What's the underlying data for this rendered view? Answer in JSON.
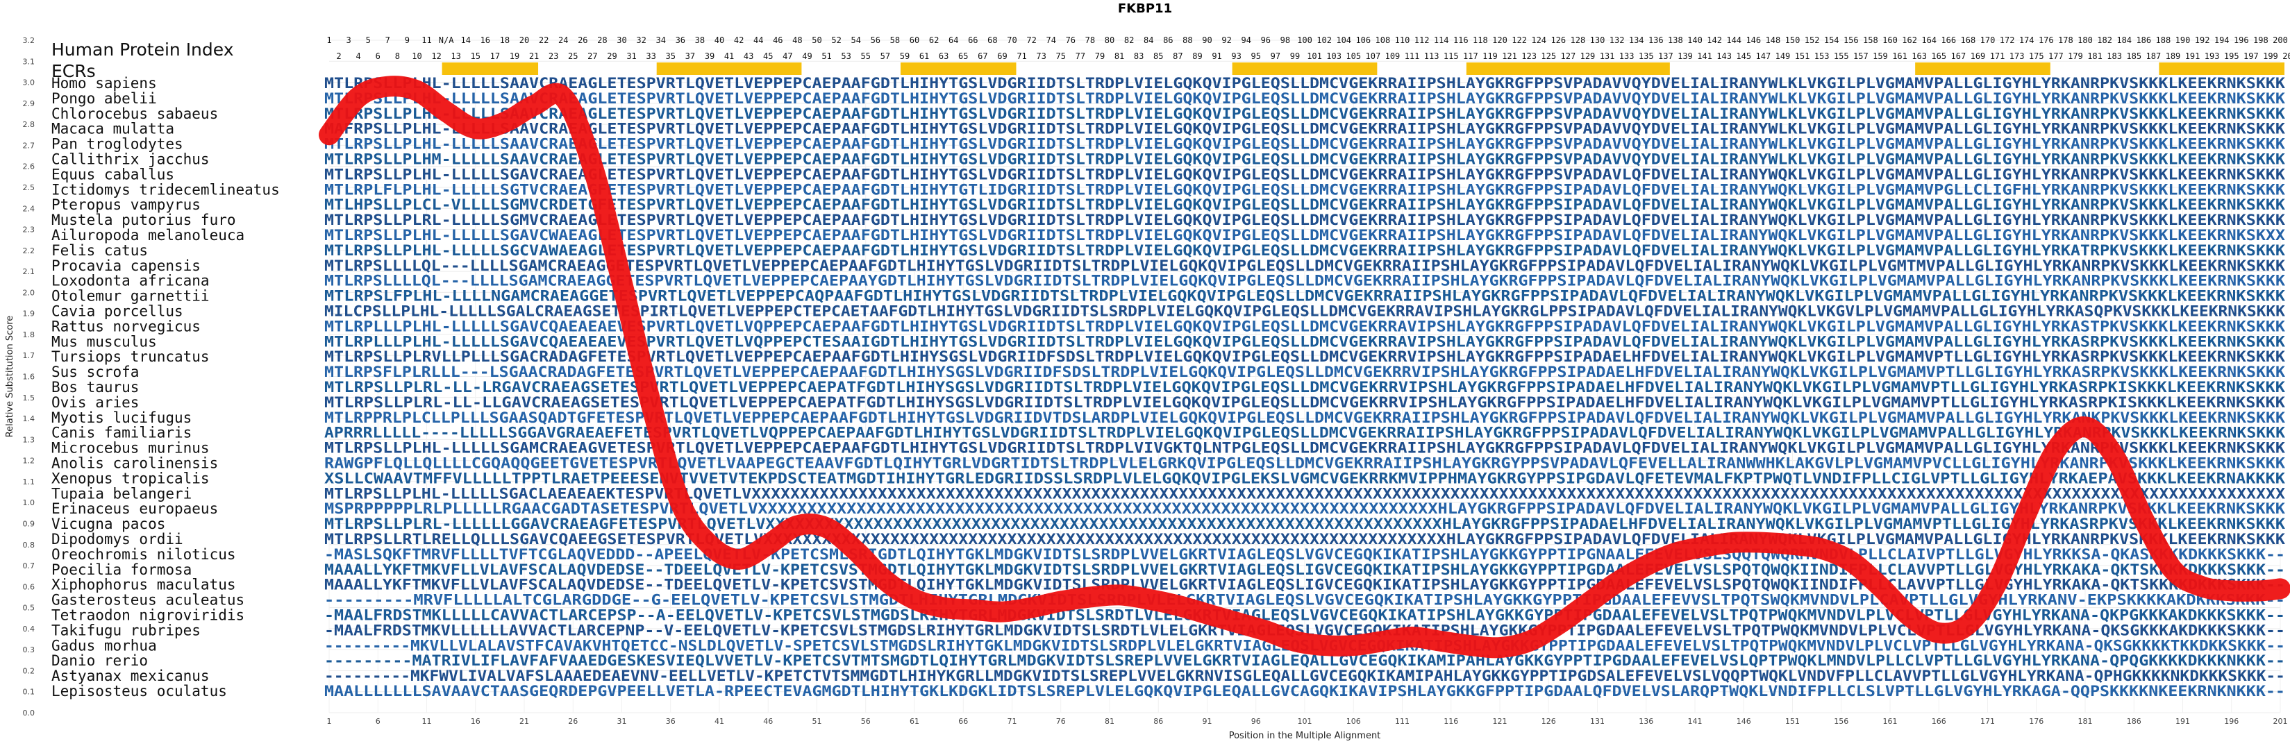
{
  "chart_data": {
    "type": "line",
    "title": "FKBP11",
    "xlabel": "Position in the Multiple Alignment",
    "ylabel": "Relative Substitution Score",
    "ylim": [
      0.0,
      3.2
    ],
    "xlim": [
      1,
      201
    ],
    "y_ticks": [
      "0.0",
      "0.1",
      "0.2",
      "0.3",
      "0.4",
      "0.5",
      "0.6",
      "0.7",
      "0.8",
      "0.9",
      "1.0",
      "1.1",
      "1.2",
      "1.3",
      "1.4",
      "1.5",
      "1.6",
      "1.7",
      "1.8",
      "1.9",
      "2.0",
      "2.1",
      "2.2",
      "2.3",
      "2.4",
      "2.5",
      "2.6",
      "2.7",
      "2.8",
      "2.9",
      "3.0",
      "3.1",
      "3.2"
    ],
    "x_ticks": [
      "1",
      "6",
      "11",
      "16",
      "21",
      "26",
      "31",
      "36",
      "41",
      "46",
      "51",
      "56",
      "61",
      "66",
      "71",
      "76",
      "81",
      "86",
      "91",
      "96",
      "101",
      "106",
      "111",
      "116",
      "121",
      "126",
      "131",
      "136",
      "141",
      "146",
      "151",
      "156",
      "161",
      "166",
      "171",
      "176",
      "181",
      "186",
      "191",
      "196",
      "201"
    ],
    "header_label": "Human Protein Index",
    "ecr_label": "ECRs",
    "hpi_row1": [
      "1",
      "3",
      "5",
      "7",
      "9",
      "11",
      "N/A",
      "14",
      "16",
      "18",
      "20",
      "22",
      "24",
      "26",
      "28",
      "30",
      "32",
      "34",
      "36",
      "38",
      "40",
      "42",
      "44",
      "46",
      "48",
      "50",
      "52",
      "54",
      "56",
      "58",
      "60",
      "62",
      "64",
      "66",
      "68",
      "70",
      "72",
      "74",
      "76",
      "78",
      "80",
      "82",
      "84",
      "86",
      "88",
      "90",
      "92",
      "94",
      "96",
      "98",
      "100",
      "102",
      "104",
      "106",
      "108",
      "110",
      "112",
      "114",
      "116",
      "118",
      "120",
      "122",
      "124",
      "126",
      "128",
      "130",
      "132",
      "134",
      "136",
      "138",
      "140",
      "142",
      "144",
      "146",
      "148",
      "150",
      "152",
      "154",
      "156",
      "158",
      "160",
      "162",
      "164",
      "166",
      "168",
      "170",
      "172",
      "174",
      "176",
      "178",
      "180",
      "182",
      "184",
      "186",
      "188",
      "190",
      "192",
      "194",
      "196",
      "198",
      "200"
    ],
    "hpi_row2": [
      "2",
      "4",
      "6",
      "8",
      "10",
      "12",
      "13",
      "15",
      "17",
      "19",
      "21",
      "23",
      "25",
      "27",
      "29",
      "31",
      "33",
      "35",
      "37",
      "39",
      "41",
      "43",
      "45",
      "47",
      "49",
      "51",
      "53",
      "55",
      "57",
      "59",
      "61",
      "63",
      "65",
      "67",
      "69",
      "71",
      "73",
      "75",
      "77",
      "79",
      "81",
      "83",
      "85",
      "87",
      "89",
      "91",
      "93",
      "95",
      "97",
      "99",
      "101",
      "103",
      "105",
      "107",
      "109",
      "111",
      "113",
      "115",
      "117",
      "119",
      "121",
      "123",
      "125",
      "127",
      "129",
      "131",
      "133",
      "135",
      "137",
      "139",
      "141",
      "143",
      "145",
      "147",
      "149",
      "151",
      "153",
      "155",
      "157",
      "159",
      "161",
      "163",
      "165",
      "167",
      "169",
      "171",
      "173",
      "175",
      "177",
      "179",
      "181",
      "183",
      "185",
      "187",
      "189",
      "191",
      "193",
      "195",
      "197",
      "199",
      "201"
    ],
    "ecr_regions": [
      [
        13,
        22
      ],
      [
        35,
        49
      ],
      [
        60,
        71
      ],
      [
        94,
        108
      ],
      [
        118,
        138
      ],
      [
        164,
        177
      ],
      [
        189,
        201
      ]
    ],
    "series": [
      {
        "color": "#ee1111",
        "x": [
          1,
          4,
          7,
          10,
          13,
          16,
          19,
          22,
          25,
          28,
          31,
          34,
          37,
          40,
          43,
          46,
          49,
          52,
          55,
          58,
          61,
          64,
          67,
          70,
          73,
          76,
          79,
          82,
          85,
          88,
          91,
          94,
          97,
          100,
          103,
          106,
          109,
          112,
          115,
          118,
          121,
          124,
          127,
          130,
          133,
          136,
          139,
          142,
          145,
          148,
          151,
          154,
          157,
          160,
          163,
          166,
          169,
          172,
          175,
          178,
          181,
          184,
          187,
          190,
          193,
          196,
          199,
          201
        ],
        "values": [
          2.75,
          2.93,
          2.98,
          2.96,
          2.86,
          2.78,
          2.81,
          2.89,
          2.93,
          2.6,
          2.05,
          1.47,
          1.0,
          0.8,
          0.73,
          0.8,
          0.89,
          0.88,
          0.77,
          0.63,
          0.54,
          0.5,
          0.49,
          0.48,
          0.5,
          0.53,
          0.55,
          0.56,
          0.54,
          0.51,
          0.47,
          0.43,
          0.39,
          0.34,
          0.32,
          0.32,
          0.34,
          0.36,
          0.34,
          0.32,
          0.31,
          0.34,
          0.42,
          0.52,
          0.62,
          0.7,
          0.76,
          0.79,
          0.81,
          0.81,
          0.8,
          0.78,
          0.72,
          0.6,
          0.46,
          0.38,
          0.42,
          0.62,
          0.95,
          1.25,
          1.36,
          1.22,
          0.92,
          0.68,
          0.6,
          0.58,
          0.58,
          0.59
        ]
      }
    ],
    "species": [
      {
        "name": "Homo sapiens",
        "seq": "MTLRPSLLPLHL-LLLLLSAAVCRAEAGLETESPVRTLQVETLVEPPEPCAEPAAFGDTLHIHYTGSLVDGRIIDTSLTRDPLVIELGQKQVIPGLEQSLLDMCVGEKRRAIIPSHLAYGKRGFPPSVPADAVVQYDVELIALIRANYWLKLVKGILPLVGMAMVPALLGLIGYHLYRKANRPKVSKKKLKEEKRNKSKKK"
      },
      {
        "name": "Pongo abelii",
        "seq": "MTLRPSLLPLHL-LLLLLSAAVCRAEAGLETESPVRTLQVETLVEPPEPCAEPAAFGDTLHIHYTGSLVDGRIIDTSLTRDPLVIELGQKQVIPGLEQSLLDMCVGEKRRAIIPSHLAYGKRGFPPSVPADAVVQYDVELIALIRANYWLKLVKGILPLVGMAMVPALLGLIGYHLYRKANRPKVSKKKLKEEKRNKSKKK"
      },
      {
        "name": "Chlorocebus sabaeus",
        "seq": "MTLRPSLLPLHL-LLLLLSAAVCRAEAGLETESPVRTLQVETLVEPPEPCAEPAAFGDTLHIHYTGSLVDGRIIDTSLTRDPLVIELGQKQVIPGLEQSLLDMCVGEKRRAIIPSHLAYGKRGFPPSVPADAVVQYDVELIALIRANYWLKLVKGILPLVGMAMVPALLGLIGYHLYRKANRPKVSKKKLKEEKRNKSKKK"
      },
      {
        "name": "Macaca mulatta",
        "seq": "MAFRPSLLPLHL-LLLLLSAAVCRAEAGLETESPVRTLQVETLVEPPEPCAEPAAFGDTLHIHYTGSLVDGRIIDTSLTRDPLVIELGQKQVIPGLEQSLLDMCVGEKRRAIIPSHLAYGKRGFPPSVPADAVVQYDVELIALIRANYWLKLVKGILPLVGMAMVPALLGLIGYHLYRKANRPKVSKKKLKEEKRNKSKKK"
      },
      {
        "name": "Pan troglodytes",
        "seq": "MTLRPSLLPLHL-LLLLLSAAVCRAEAGLETESPVRTLQVETLVEPPEPCAEPAAFGDTLHIHYTGSLVDGRIIDTSLTRDPLVIELGQKQVIPGLEQSLLDMCVGEKRRAIIPSHLAYGKRGFPPSVPADAVVQYDVELIALIRANYWLKLVKGILPLVGMAMVPALLGLIGYHLYRKANRPKVSKKKLKEEKRNKSKKK"
      },
      {
        "name": "Callithrix jacchus",
        "seq": "MTLRPSLLPLHM-LLLLLSAAVCRAEAGLETESPVRTLQVETLVEPPEPCAEPAAFGDTLHIHYTGSLVDGRIIDTSLTRDPLVIELGQKQVIPGLEQSLLDMCVGEKRRAIIPSHLAYGKRGFPPSVPADAVVQYDVELIALIRANYWLKLVKGILPLVGMAMVPALLGLIGYHLYRKANRPKVSKKKLKEEKRNKSKKK"
      },
      {
        "name": "Equus caballus",
        "seq": "MTLRPSLLPLHL-LLLLLSGAVCRAEAGLETESPVRTLQVETLVEPPEPCAEPAAFGDTLHIHYTGSLVDGRIIDTSLTRDPLVIELGQKQVIPGLEQSLLDMCVGEKRRAIIPSHLAYGKRGFPPSVPADAVLQFDVELIALIRANYWQKLVKGILPLVGMAMVPALLGLIGYHLYRKANRPKVSKKKLKEEKRNKSKKK"
      },
      {
        "name": "Ictidomys tridecemlineatus",
        "seq": "MTLRPLFLPLHL-LLLLLSGTVCRAEAGFETESPVRTLQVETLVEPPEPCAEPAAFGDTLHIHYTGTLIDGRIIDTSLTRDPLVIELGQKQVIPGLEQSLLDMCVGEKRRAIIPSHLAYGKRGFPPSIPADAVLQFDVELIALIRANYWQKLVKGILPLVGMAMVPGLLCLIGFHLYRKANRPKVSKKKLKEEKRNKSKKK"
      },
      {
        "name": "Pteropus vampyrus",
        "seq": "MTLHPSLLPLCL-VLLLLSGMVCRDETGFETESPVRTLQVETLVEPPEPCAEPAAFGDTLHIHYTGSLVDGRIIDTSLTRDPLVIELGQKQVIPGLEQSLLDMCVGEKRRAIIPSHLAYGKRGFPPSIPADAVLQFDVELIALIRANYWQKLVKGILPLVGMAMVPALLGLIGYHLYRKANRPKVSKKKLKEEKRNKSKKK"
      },
      {
        "name": "Mustela putorius furo",
        "seq": "MTLRPSLLPLRL-LLLLLSGMVCRAEAGLETESPVRTLQVETLVEPPEPCAEPAAFGDTLHIHYTGSLVDGRIIDTSLTRDPLVIELGQKQVIPGLEQSLLDMCVGEKRRAIIPSHLAYGKRGFPPSIPADAVLQFDVELIALIRANYWQKLVKGILPLVGMAMVPALLGLIGYHLYRKANRPKVSKKKLKEEKRNKSKKK"
      },
      {
        "name": "Ailuropoda melanoleuca",
        "seq": "MTLRPSLLPLHL-LLLLLSGAVCWAEAGLETESPVRTLQVETLVEPPEPCAEPAAFGDTLHIHYTGSLVDGRIIDTSLTRDPLVIELGQKQVIPGLEQSLLDMCVGEKRRAIIPSHLAYGKRGFPPSIPADAVLQFDVELIALIRANYWQKLVKGILPLVGMAMVPALLGLIGYHLYRKANRPKVSKKKLKEEKRNKSKXX"
      },
      {
        "name": "Felis catus",
        "seq": "MTLRPSLLPLHL-LLLLLSGCVAWAEAGLETESPVRTLQVETLVEPPEPCAEPAAFGDTLHIHYTGSLVDGRIIDTSLTRDPLVIELGQKQVIPGLEQSLLDMCVGEKRRAIIPSHLAYGKRGFPPSIPADAVLQFDVELIALIRANYWQKLVKGILPLVGMAMVPALLGLIGYHLYRKATRPKVSKKKLKEEKRNKSKKK"
      },
      {
        "name": "Procavia capensis",
        "seq": "MTLRPSLLLLQL---LLLLSGAMCRAEAGGETESPVRTLQVETLVEPPEPCAEPAAFGDTLHIHYTGSLVDGRIIDTSLTRDPLVIELGQKQVIPGLEQSLLDMCVGEKRRAIIPSHLAYGKRGFPPSIPADAVLQFDVELIALIRANYWQKLVKGILPLVGMTMVPALLGLIGYHLYRKANRPKVSKKKLKEEKRNKSKKK"
      },
      {
        "name": "Loxodonta africana",
        "seq": "MTLRPSLLLLQL---LLLLSGAMCRAEAGGETESPVRTLQVETLVEPPEPCAEPAAYGDTLHIHYTGSLVDGRIIDTSLTRDPLVIELGQKQVIPGLEQSLLDMCVGEKRRAIIPSHLAYGKRGFPPSIPADAVLQFDVELIALIRANYWQKLVKGILPLVGMAMVPALLGLIGYHLYRKANRPKVSKKKLKEEKRNKSKKK"
      },
      {
        "name": "Otolemur garnettii",
        "seq": "MTLRPSLFPLHL-LLLLNGAMCRAEAGGETESPVRTLQVETLVEPPEPCAQPAAFGDTLHIHYTGSLVDGRIIDTSLTRDPLVIELGQKQVIPGLEQSLLDMCVGEKRRAIIPSHLAYGKRGFPPSIPADAVLQFDVELIALIRANYWQKLVKGILPLVGMAMVPALLGLIGYHLYRKANRPKVSKKKLKEEKRNKSKKK"
      },
      {
        "name": "Cavia porcellus",
        "seq": "MILCPSLLPLHL-LLLLLSGALCRAEAGSETESPIRTLQVETLVEPPEPCTEPCAETAAFGDTLHIHYTGSLVDGRIIDTSLSRDPLVIELGQKQVIPGLEQSLLDMCVGEKRRAVIPSHLAYGKRGLPPSIPADAVLQFDVELIALIRANYWQKLVKGVLPLVGMAMVPALLGLIGYHLYRKASQPKVSKKKLKEEKRNKSKKK"
      },
      {
        "name": "Rattus norvegicus",
        "seq": "MTLRPLLLPLHL-LLLLLSGAVCQAEAEAEVESPVRTLQVETLVQPPEPCAEPAAFGDTLHIHYTGSLVDGRIIDTSLTRDPLVIELGQKQVIPGLEQSLLDMCVGEKRRAVIPSHLAYGKRGFPPSIPADAVLQFDVELIALIRANYWQKLVKGILPLVGMAMVPALLGLIGYHLYRKASTPKVSKKKLKEEKRNKSKKK"
      },
      {
        "name": "Mus musculus",
        "seq": "MTLRPLLLPLHL-LLLLLSGAVCQAEAEAEVESPVRTLQVETLVQPPEPCTESAAIGDTLHIHYTGSLVDGRIIDTSLTRDPLVIELGQKQVIPGLEQSLLDMCVGEKRRAVIPSHLAYGKRGFPPSIPADAVLQFDVELIALIRANYWQKLVKGILPLVGMAMVPALLGLIGYHLYRKASRPKVSKKKLKEEKRNKSKKK"
      },
      {
        "name": "Tursiops truncatus",
        "seq": "MTLRPSLLPLRVLLPLLLSGACRADAGFETESPVRTLQVETLVEPPEPCAEPAAFGDTLHIHYSGSLVDGRIIDFSDSLTRDPLVIELGQKQVIPGLEQSLLDMCVGEKRRVIPSHLAYGKRGFPPSIPADAELHFDVELIALIRANYWQKLVKGILPLVGMAMVPTLLGLIGYHLYRKASRPKVSKKKLKEEKRNKSKKK"
      },
      {
        "name": "Sus scrofa",
        "seq": "MTLRPSFLPLRLLL---LSGAACRADAGFETESPVRTLQVETLVEPPEPCAEPAAFGDTLHIHYSGSLVDGRIIDFSDSLTRDPLVIELGQKQVIPGLEQSLLDMCVGEKRRVIPSHLAYGKRGFPPSIPADAELHFDVELIALIRANYWQKLVKGILPLVGMAMVPTLLGLIGYHLYRKASRPKVSKKKLKEEKRNKSKKK"
      },
      {
        "name": "Bos taurus",
        "seq": "MTLRPSLLPLRL-LL-LRGAVCRAEAGSETESPVRTLQVETLVEPPEPCAEPATFGDTLHIHYSGSLVDGRIIDTSLTRDPLVIELGQKQVIPGLEQSLLDMCVGEKRRVIPSHLAYGKRGFPPSIPADAELHFDVELIALIRANYWQKLVKGILPLVGMAMVPTLLGLIGYHLYRKASRPKISKKKLKEEKRNKSKKK"
      },
      {
        "name": "Ovis aries",
        "seq": "MTLRPSLLPLRL-LL-LLGAVCRAEAGSETESPVRTLQVETLVEPPEPCAEPATFGDTLHIHYSGSLVDGRIIDTSLTRDPLVIELGQKQVIPGLEQSLLDMCVGEKRRVIPSHLAYGKRGFPPSIPADAELHFDVELIALIRANYWQKLVKGILPLVGMAMVPTLLGLIGYHLYRKASRPKISKKKLKEEKRNKSKKK"
      },
      {
        "name": "Myotis lucifugus",
        "seq": "MTLRPPRLPLCLLPLLLSGAASQADTGFETESPVRTLQVETLVEPPEPCAEPAAFGDTLHIHYTGSLVDGRIIDVTDSLARDPLVIELGQKQVIPGLEQSLLDMCVGEKRRAIIPSHLAYGKRGFPPSIPADAVLQFDVELIALIRANYWQKLVKGILPLVGMAMVPALLGLIGYHLYRKANKPKVSKKKLKEEKRNKSKKK"
      },
      {
        "name": "Canis familiaris",
        "seq": "APRRRLLLLL----LLLLLSGGAVGRAEAEFETESPVRTLQVETLVQPPEPCAEPAAFGDTLHIHYTGSLVDGRIIDTSLTRDPLVIELGQKQVIPGLEQSLLDMCVGEKRRAIIPSHLAYGKRGFPPSIPADAVLQFDVELIALIRANYWQKLVKGILPLVGMAMVPALLGLIGYHLYRKANRPKVSKKKLKEEKRNKSKKK"
      },
      {
        "name": "Microcebus murinus",
        "seq": "MTLRPSLLPLHL-LLLLLSGAMCRAEAGVETESPVRTLQVETLVEPPEPCAEPAAFGDTLHIHYTGSLVDGRIIDTSLTRDPLVIVGKTQLNTPGLEQSLLDMCVGEKRRAIIPSHLAYGKRGFPPSIPADAVLQFDVELIALIRANYWQKLVKGILPLVGMAMVPALLGLIGYHLYRKANRPKVSKKKLKEEKRNKSKKK"
      },
      {
        "name": "Anolis carolinensis",
        "seq": "RAWGPFLQLLQLLLLCGQAQQGEETGVETESPVRTLQVETLVAAPEGCTEAAVFGDTLQIHYTGRLVDGRTIDTSLTRDPLVLELGRKQVIPGLEQSLLDMCVGEKRRAIIPSHLAYGKRGYPPSVPADAVLQFEVELLALIRANWWHKLAKGVLPLVGMAMVPVCLLGLIGYHLYRKANRPKVSKKKLKEEKRNKSKKK"
      },
      {
        "name": "Xenopus tropicalis",
        "seq": "XSLLCWAAVTMFFVLLLLLTPPTLRAETPEEESENVTVVETVTEKPDSCTEATMGDTIHIHYTGRLEDGRIIDSSLSRDPLVLELGQKQVIPGLEKSLVGMCVGEKRRKMVIPPHMAYGKRGYPPSIPGDAVLQFETEVMALFKPTPWQTLVNDIFPLLCIGLVPTLLGLIGYHLYRKAEPAVSKKKLKEEKRNAKKKK"
      },
      {
        "name": "Tupaia belangeri",
        "seq": "MTLRPSLLPLHL-LLLLLSGACLAEAEAEKTESPVRTLQVETLVXXXXXXXXXXXXXXXXXXXXXXXXXXXXXXXXXXXXXXXXXXXXXXXXXXXXXXXXXXXXXXXXXXXXXXXXXXXXXXXXXXXXXXXXXXXXXXXXXXXXXXXXXXXXXXXXXXXXXXXXXXXXXXXXXXXXXXXXXXXXXXXXXXXXXXXXXXXXXX"
      },
      {
        "name": "Erinaceus europaeus",
        "seq": "MSPRPPPPPLRLPLLLLLRGAACGADTASETESPVRTLQVETLVXXXXXXXXXXXXXXXXXXXXXXXXXXXXXXXXXXXXXXXXXXXXXXXXXXXXXXXXXXXXXXXXXXXXXHLAYGKRGFPPSIPADAVLQFDVELIALIRANYWQKLVKGILPLVGMAMVPALLGLIGYHLYRKANRPKVSKKKLKEEKRNKSKKK"
      },
      {
        "name": "Vicugna pacos",
        "seq": "MTLRPSLLPLRL-LLLLLLGGAVCRAEAGFETESPVRTLQVETLVXXXXXXXXXXXXXXXXXXXXXXXXXXXXXXXXXXXXXXXXXXXXXXXXXXXXXXXXXXXXXXXXXXXXXHLAYGKRGFPPSIPADAELHFDVELIALIRANYWQKLVKGILPLVGMAMVPTLLGLIGYHLYRKASRPKVSKKKLKEEKRNKSKKK"
      },
      {
        "name": "Dipodomys ordii",
        "seq": "MTLRPSLLRTLRELLQLLLSGAVCQAEEGSETESPVRTLQVETLVXXXXXXXXXXXXXXXXXXXXXXXXXXXXXXXXXXXXXXXXXXXXXXXXXXXXXXXXXXXXXXXXXXXXXXHLAYGKRGFPPSIPADAVLQFDVELIALIRANYWQKLVKGILPLVGMAMVPALLGLIGYHLYRKANRPKVSKKKLKEEKRNKSKKK"
      },
      {
        "name": "Oreochromis niloticus",
        "seq": "-MASLSQKFTMRVFLLLLTVFTCGLAQVEDDD--APEELQVETLV-KPETCSMLSRIGDTLQIHYTGKLMDGKVIDTSLSRDPLVVELGKRTVIAGLEQSLVGVCEGQKIKATIPSHLAYGKKGYPPTIPGNAALEFEVELVSLSQQTQWQRMVNDVLPLLCLAIVPTLLGLVGYHLYRKKSA-QKASKKKKDKKKSKKK--"
      },
      {
        "name": "Poecilia formosa",
        "seq": "MAAALLYKFTMKVFLLVLAVFSCALAQVDEDSE--TDEELQVETLV-KPETCSVSTMGDTLQIHYTGKLMDGKVIDTSLSRDPLVVELGKRTVIAGLEQSLIGVCEGQKIKATIPSHLAYGKKGYPPTIPGDAALEFEVELVSLSPQTQWQKIINDIFPLLCLAVVPTLLGLVGYHLYRKAKA-QKTSKKKKDKKKSKKK--"
      },
      {
        "name": "Xiphophorus maculatus",
        "seq": "MAAALLYKFTMKVFLLVLAVFSCALAQVDEDSE--TDEELQVETLV-KPETCSVSTMGDTLQIHYTGKLMDGKVIDTSLSRDPLVVELGKRTVIAGLEQSLIGVCEGQKIKATIPSHLAYGKKGYPPTIPGDAALEFEVELVSLSPQTQWQKIINDIFPLLCLAVVPTLLGLVGYHLYRKAKA-QKTSKKKKDKKKSKKK--"
      },
      {
        "name": "Gasterosteus aculeatus",
        "seq": "---------MRVFLLLLLALTCGLARGDDGE--G-EELQVETLV-KPETCSVLSTMGDTLHIHYTGRLMDGKVIDTSLSRDPLVLELGKRTVIAGLEQSLVGVCEGQKIKATIPSHLAYGKKGYPPTIPGDAALEFEVVSLTPQTSWQKMVNDVLPLCAVPTLLGLVGYHLYRKANV-EKPSKKKKAKDKKKSKKK--"
      },
      {
        "name": "Tetraodon nigroviridis",
        "seq": "-MAALFRDSTMKLLLLLCAVVACTLARCEPSP--A-EELQVETLV-KPETCSVLSTMGDSLRIHYTGRLMDGKVIDTSLSRDTLVLELGKRTVIAGLEQSLVGVCEGQKIKATIPSHLAYGKKGYPPTIPGDAALEFEVELVSLTPQTPWQKMVNDVLPLVCLVPTLLGLVGYHLYRKANA-QKPGKKKAKDKKKSKKK--"
      },
      {
        "name": "Takifugu rubripes",
        "seq": "-MAALFRDSTMKVLLLLLLAVVACTLARCEPNP--V-EELQVETLV-KPETCSVLSTMGDSLRIHYTGRLMDGKVIDTSLSRDTLVLELGKRTVIAGLEQSLVGVCEGQKIKATIPSHLAYGKKGYPPTIPGDAALEFEVELVSLTPQTPWQKMVNDVLPLVCLVPTLLGLVGYHLYRKANA-QKSGKKKAKDKKKSKKK--"
      },
      {
        "name": "Gadus morhua",
        "seq": "---------MKVLLVLALAVSTFCAVAKVHTQETCC-NSLDLQVETLV-SPETCSVLSTMGDSLRIHYTGKLMDGKVIDTSLSRDPLVLELGKRTVIAGLEQSLVGVCEGQKIKATIPSHLAYGKKGYPPTIPGDAALEFEVELVSLTPQTPWQKMVNDVLPLVCLVPTLLGLVGYHLYRKANA-QKSGKKKKTKKDKKSKKK--"
      },
      {
        "name": "Danio rerio",
        "seq": "---------MATRIVLIFLAVFAFVAAEDGESKESVIEQLVVETLV-KPETCSVTMTSMGDTLQIHYTGRLMDGKVIDTSLSREPLVVELGKRTVIAGLEQALLGVCEGQKIKAMIPAHLAYGKKGYPPTIPGDAALEFEVELVSLQPTPWQKLMNDVLPLLCLVPTLLGLVGYHLYRKANA-QPQGKKKKDKKKNKKK--"
      },
      {
        "name": "Astyanax mexicanus",
        "seq": "---------MKFWVLIVALVAFSLAAAEDEAEVNV-EELLVETLV-KPETCTVTSMMGDTLHIHYKGRLLMDGKVIDTSLSREPLVVELGKRNVISGLEQALLGVCEGQKIKAMIPAHLAYGKKGYPPTIPGDSALEFEVELVSLVQQPTWQKLVNDVFPLLCLAVVPTLLGLVGYHLYRKANA-QPHGKKKKNKDKKKSKKK--"
      },
      {
        "name": "Lepisosteus oculatus",
        "seq": "MAALLLLLLLSAVAAVCTAASGEQRDEPGVPEELLVETLA-RPEECTEVAGMGDTLHIHYTGKLKDGKLIDTSLSREPLVLELGQKQVIPGLEQALLGVCAGQKIKAVIPSHLAYGKKGFPPTIPGDAALQFDVELVSLARQPTWQKLVNDIFPLLCLSLVPTLLGLVGYHLYRKAGA-QQPSKKKKNKEEKRNKNKKK--"
      }
    ]
  }
}
